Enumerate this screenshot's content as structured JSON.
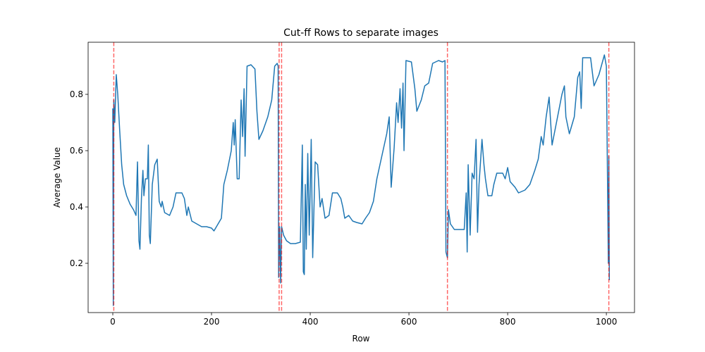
{
  "chart_data": {
    "type": "line",
    "title": "Cut-ff Rows to separate images",
    "xlabel": "Row",
    "ylabel": "Average Value",
    "x": [
      0,
      1,
      2,
      4,
      7,
      10,
      14,
      18,
      22,
      28,
      35,
      42,
      47,
      50,
      53,
      55,
      58,
      61,
      63,
      66,
      70,
      72,
      74,
      76,
      80,
      85,
      90,
      94,
      98,
      100,
      105,
      115,
      122,
      128,
      140,
      145,
      150,
      153,
      160,
      170,
      180,
      190,
      200,
      205,
      210,
      220,
      225,
      232,
      240,
      244,
      246,
      248,
      252,
      256,
      260,
      263,
      266,
      268,
      272,
      280,
      288,
      292,
      296,
      304,
      314,
      322,
      328,
      333,
      335,
      336,
      338,
      340,
      342,
      346,
      352,
      360,
      370,
      380,
      384,
      386,
      388,
      390,
      392,
      395,
      398,
      402,
      405,
      410,
      415,
      420,
      424,
      430,
      438,
      445,
      455,
      462,
      466,
      470,
      478,
      486,
      494,
      505,
      512,
      520,
      528,
      535,
      545,
      555,
      560,
      564,
      570,
      575,
      578,
      582,
      585,
      588,
      590,
      594,
      605,
      612,
      616,
      625,
      632,
      640,
      648,
      660,
      668,
      673,
      675,
      678,
      680,
      684,
      692,
      700,
      712,
      716,
      718,
      720,
      724,
      728,
      732,
      736,
      739,
      742,
      748,
      752,
      755,
      760,
      768,
      772,
      778,
      790,
      795,
      800,
      805,
      815,
      822,
      835,
      845,
      855,
      862,
      868,
      872,
      878,
      884,
      890,
      900,
      910,
      915,
      918,
      925,
      935,
      942,
      946,
      949,
      952,
      968,
      975,
      985,
      996,
      1000,
      1004,
      1005,
      1006
    ],
    "series": [
      {
        "name": "Average Value",
        "color": "#1f77b4",
        "values": [
          0.75,
          0.05,
          0.78,
          0.7,
          0.87,
          0.8,
          0.67,
          0.55,
          0.48,
          0.44,
          0.41,
          0.39,
          0.37,
          0.56,
          0.28,
          0.25,
          0.43,
          0.53,
          0.44,
          0.5,
          0.5,
          0.62,
          0.3,
          0.27,
          0.48,
          0.55,
          0.57,
          0.42,
          0.4,
          0.42,
          0.38,
          0.37,
          0.4,
          0.45,
          0.45,
          0.43,
          0.37,
          0.4,
          0.35,
          0.34,
          0.33,
          0.33,
          0.325,
          0.315,
          0.33,
          0.36,
          0.48,
          0.53,
          0.6,
          0.7,
          0.62,
          0.71,
          0.5,
          0.5,
          0.78,
          0.65,
          0.82,
          0.58,
          0.9,
          0.905,
          0.89,
          0.74,
          0.64,
          0.67,
          0.72,
          0.78,
          0.9,
          0.91,
          0.9,
          0.15,
          0.33,
          0.13,
          0.33,
          0.3,
          0.28,
          0.27,
          0.27,
          0.275,
          0.62,
          0.17,
          0.16,
          0.48,
          0.25,
          0.59,
          0.3,
          0.64,
          0.22,
          0.56,
          0.55,
          0.4,
          0.43,
          0.36,
          0.37,
          0.45,
          0.45,
          0.43,
          0.4,
          0.36,
          0.37,
          0.35,
          0.345,
          0.34,
          0.36,
          0.38,
          0.42,
          0.5,
          0.58,
          0.66,
          0.72,
          0.47,
          0.61,
          0.77,
          0.7,
          0.82,
          0.68,
          0.84,
          0.6,
          0.92,
          0.915,
          0.82,
          0.74,
          0.78,
          0.83,
          0.84,
          0.91,
          0.92,
          0.915,
          0.92,
          0.24,
          0.22,
          0.39,
          0.34,
          0.32,
          0.32,
          0.32,
          0.45,
          0.24,
          0.55,
          0.3,
          0.52,
          0.5,
          0.64,
          0.31,
          0.48,
          0.64,
          0.55,
          0.5,
          0.44,
          0.44,
          0.48,
          0.52,
          0.52,
          0.5,
          0.54,
          0.49,
          0.47,
          0.45,
          0.46,
          0.48,
          0.53,
          0.57,
          0.65,
          0.62,
          0.72,
          0.79,
          0.62,
          0.71,
          0.8,
          0.83,
          0.72,
          0.66,
          0.72,
          0.86,
          0.88,
          0.75,
          0.93,
          0.93,
          0.83,
          0.87,
          0.94,
          0.9,
          0.2,
          0.58,
          0.14
        ]
      }
    ],
    "vlines": [
      2,
      337,
      342,
      678,
      1005
    ],
    "vline_color": "#ff0000",
    "xlim": [
      -50,
      1057
    ],
    "ylim": [
      0.025,
      0.985
    ],
    "xticks": [
      0,
      200,
      400,
      600,
      800,
      1000
    ],
    "yticks": [
      0.2,
      0.4,
      0.6,
      0.8
    ]
  }
}
